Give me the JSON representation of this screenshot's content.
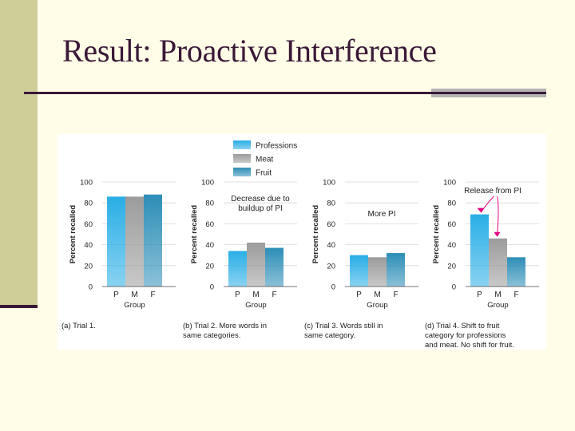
{
  "slide": {
    "title": "Result: Proactive Interference"
  },
  "colors": {
    "professions": "#29aee6",
    "meat": "#9c9c9c",
    "fruit": "#2d8eb7",
    "text": "#222222",
    "annotation_arrow": "#e4007f"
  },
  "legend": {
    "placement": "top-center",
    "entries": [
      "Professions",
      "Meat",
      "Fruit"
    ]
  },
  "chart_data": [
    {
      "type": "bar",
      "categories": [
        "P",
        "M",
        "F"
      ],
      "values": [
        86,
        86,
        88
      ],
      "xlabel": "Group",
      "ylabel": "Percent recalled",
      "ylim": [
        0,
        100
      ],
      "yticks": [
        "0",
        "20",
        "40",
        "60",
        "80",
        "100"
      ],
      "annotation": "",
      "caption": [
        "(a) Trial 1."
      ]
    },
    {
      "type": "bar",
      "categories": [
        "P",
        "M",
        "F"
      ],
      "values": [
        34,
        42,
        37
      ],
      "xlabel": "Group",
      "ylabel": "Percent recalled",
      "ylim": [
        0,
        100
      ],
      "yticks": [
        "0",
        "20",
        "40",
        "60",
        "80",
        "100"
      ],
      "annotation": [
        "Decrease due to",
        "buildup of PI"
      ],
      "caption": [
        "(b) Trial 2. More words in",
        "same categories."
      ]
    },
    {
      "type": "bar",
      "categories": [
        "P",
        "M",
        "F"
      ],
      "values": [
        30,
        28,
        32
      ],
      "xlabel": "Group",
      "ylabel": "Percent recalled",
      "ylim": [
        0,
        100
      ],
      "yticks": [
        "0",
        "20",
        "40",
        "60",
        "80",
        "100"
      ],
      "annotation": [
        "More PI"
      ],
      "caption": [
        "(c) Trial 3. Words still in",
        "same category."
      ]
    },
    {
      "type": "bar",
      "categories": [
        "P",
        "M",
        "F"
      ],
      "values": [
        69,
        46,
        28
      ],
      "xlabel": "Group",
      "ylabel": "Percent recalled",
      "ylim": [
        0,
        100
      ],
      "yticks": [
        "0",
        "20",
        "40",
        "60",
        "80",
        "100"
      ],
      "annotation": [
        "Release from PI"
      ],
      "caption": [
        "(d) Trial 4. Shift to fruit",
        "category for professions",
        "and meat. No shift for fruit."
      ]
    }
  ]
}
